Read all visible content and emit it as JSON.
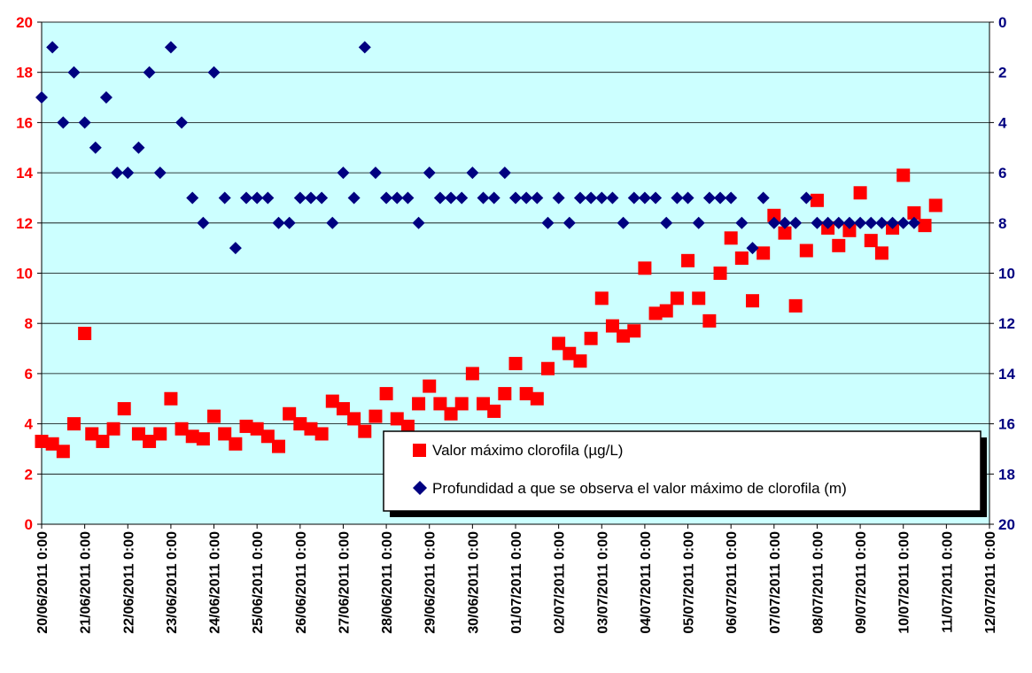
{
  "chart_data": {
    "type": "scatter",
    "background": "#ccffff",
    "grid": "horizontal",
    "legend_position": "bottom-right",
    "x_ticks": [
      "20/06/2011 0:00",
      "21/06/2011 0:00",
      "22/06/2011 0:00",
      "23/06/2011 0:00",
      "24/06/2011 0:00",
      "25/06/2011 0:00",
      "26/06/2011 0:00",
      "27/06/2011 0:00",
      "28/06/2011 0:00",
      "29/06/2011 0:00",
      "30/06/2011 0:00",
      "01/07/2011 0:00",
      "02/07/2011 0:00",
      "03/07/2011 0:00",
      "04/07/2011 0:00",
      "05/07/2011 0:00",
      "06/07/2011 0:00",
      "07/07/2011 0:00",
      "08/07/2011 0:00",
      "09/07/2011 0:00",
      "10/07/2011 0:00",
      "11/07/2011 0:00",
      "12/07/2011 0:00"
    ],
    "y_left": {
      "range": [
        0,
        20
      ],
      "ticks": [
        "0",
        "2",
        "4",
        "6",
        "8",
        "10",
        "12",
        "14",
        "16",
        "18",
        "20"
      ],
      "color": "#ff0000"
    },
    "y_right": {
      "range": [
        20,
        0
      ],
      "ticks": [
        "20",
        "18",
        "16",
        "14",
        "12",
        "10",
        "8",
        "6",
        "4",
        "2",
        "0"
      ],
      "reversed": true,
      "color": "#000080"
    },
    "series": [
      {
        "name": "Valor máximo clorofila (µg/L)",
        "axis": "left",
        "marker": "square",
        "color": "#ff0000",
        "points": [
          {
            "x": "20/06/2011 0:00",
            "y": 3.3
          },
          {
            "x": "20/06/2011 6:00",
            "y": 3.2
          },
          {
            "x": "20/06/2011 12:00",
            "y": 2.9
          },
          {
            "x": "20/06/2011 18:00",
            "y": 4.0
          },
          {
            "x": "21/06/2011 0:00",
            "y": 7.6
          },
          {
            "x": "21/06/2011 4:00",
            "y": 3.6
          },
          {
            "x": "21/06/2011 10:00",
            "y": 3.3
          },
          {
            "x": "21/06/2011 16:00",
            "y": 3.8
          },
          {
            "x": "21/06/2011 22:00",
            "y": 4.6
          },
          {
            "x": "22/06/2011 6:00",
            "y": 3.6
          },
          {
            "x": "22/06/2011 12:00",
            "y": 3.3
          },
          {
            "x": "22/06/2011 18:00",
            "y": 3.6
          },
          {
            "x": "23/06/2011 0:00",
            "y": 5.0
          },
          {
            "x": "23/06/2011 6:00",
            "y": 3.8
          },
          {
            "x": "23/06/2011 12:00",
            "y": 3.5
          },
          {
            "x": "23/06/2011 18:00",
            "y": 3.4
          },
          {
            "x": "24/06/2011 0:00",
            "y": 4.3
          },
          {
            "x": "24/06/2011 6:00",
            "y": 3.6
          },
          {
            "x": "24/06/2011 12:00",
            "y": 3.2
          },
          {
            "x": "24/06/2011 18:00",
            "y": 3.9
          },
          {
            "x": "25/06/2011 0:00",
            "y": 3.8
          },
          {
            "x": "25/06/2011 6:00",
            "y": 3.5
          },
          {
            "x": "25/06/2011 12:00",
            "y": 3.1
          },
          {
            "x": "25/06/2011 18:00",
            "y": 4.4
          },
          {
            "x": "26/06/2011 0:00",
            "y": 4.0
          },
          {
            "x": "26/06/2011 6:00",
            "y": 3.8
          },
          {
            "x": "26/06/2011 12:00",
            "y": 3.6
          },
          {
            "x": "26/06/2011 18:00",
            "y": 4.9
          },
          {
            "x": "27/06/2011 0:00",
            "y": 4.6
          },
          {
            "x": "27/06/2011 6:00",
            "y": 4.2
          },
          {
            "x": "27/06/2011 12:00",
            "y": 3.7
          },
          {
            "x": "27/06/2011 18:00",
            "y": 4.3
          },
          {
            "x": "28/06/2011 0:00",
            "y": 5.2
          },
          {
            "x": "28/06/2011 6:00",
            "y": 4.2
          },
          {
            "x": "28/06/2011 12:00",
            "y": 3.9
          },
          {
            "x": "28/06/2011 18:00",
            "y": 4.8
          },
          {
            "x": "29/06/2011 0:00",
            "y": 5.5
          },
          {
            "x": "29/06/2011 6:00",
            "y": 4.8
          },
          {
            "x": "29/06/2011 12:00",
            "y": 4.4
          },
          {
            "x": "29/06/2011 18:00",
            "y": 4.8
          },
          {
            "x": "30/06/2011 0:00",
            "y": 6.0
          },
          {
            "x": "30/06/2011 6:00",
            "y": 4.8
          },
          {
            "x": "30/06/2011 12:00",
            "y": 4.5
          },
          {
            "x": "30/06/2011 18:00",
            "y": 5.2
          },
          {
            "x": "01/07/2011 0:00",
            "y": 6.4
          },
          {
            "x": "01/07/2011 6:00",
            "y": 5.2
          },
          {
            "x": "01/07/2011 12:00",
            "y": 5.0
          },
          {
            "x": "01/07/2011 18:00",
            "y": 6.2
          },
          {
            "x": "02/07/2011 0:00",
            "y": 7.2
          },
          {
            "x": "02/07/2011 6:00",
            "y": 6.8
          },
          {
            "x": "02/07/2011 12:00",
            "y": 6.5
          },
          {
            "x": "02/07/2011 18:00",
            "y": 7.4
          },
          {
            "x": "03/07/2011 0:00",
            "y": 9.0
          },
          {
            "x": "03/07/2011 6:00",
            "y": 7.9
          },
          {
            "x": "03/07/2011 12:00",
            "y": 7.5
          },
          {
            "x": "03/07/2011 18:00",
            "y": 7.7
          },
          {
            "x": "04/07/2011 0:00",
            "y": 10.2
          },
          {
            "x": "04/07/2011 6:00",
            "y": 8.4
          },
          {
            "x": "04/07/2011 12:00",
            "y": 8.5
          },
          {
            "x": "04/07/2011 18:00",
            "y": 9.0
          },
          {
            "x": "05/07/2011 0:00",
            "y": 10.5
          },
          {
            "x": "05/07/2011 6:00",
            "y": 9.0
          },
          {
            "x": "05/07/2011 12:00",
            "y": 8.1
          },
          {
            "x": "05/07/2011 18:00",
            "y": 10.0
          },
          {
            "x": "06/07/2011 0:00",
            "y": 11.4
          },
          {
            "x": "06/07/2011 6:00",
            "y": 10.6
          },
          {
            "x": "06/07/2011 12:00",
            "y": 8.9
          },
          {
            "x": "06/07/2011 18:00",
            "y": 10.8
          },
          {
            "x": "07/07/2011 0:00",
            "y": 12.3
          },
          {
            "x": "07/07/2011 6:00",
            "y": 11.6
          },
          {
            "x": "07/07/2011 12:00",
            "y": 8.7
          },
          {
            "x": "07/07/2011 18:00",
            "y": 10.9
          },
          {
            "x": "08/07/2011 0:00",
            "y": 12.9
          },
          {
            "x": "08/07/2011 6:00",
            "y": 11.8
          },
          {
            "x": "08/07/2011 12:00",
            "y": 11.1
          },
          {
            "x": "08/07/2011 18:00",
            "y": 11.7
          },
          {
            "x": "09/07/2011 0:00",
            "y": 13.2
          },
          {
            "x": "09/07/2011 6:00",
            "y": 11.3
          },
          {
            "x": "09/07/2011 12:00",
            "y": 10.8
          },
          {
            "x": "09/07/2011 18:00",
            "y": 11.8
          },
          {
            "x": "10/07/2011 0:00",
            "y": 13.9
          },
          {
            "x": "10/07/2011 6:00",
            "y": 12.4
          },
          {
            "x": "10/07/2011 12:00",
            "y": 11.9
          },
          {
            "x": "10/07/2011 18:00",
            "y": 12.7
          }
        ]
      },
      {
        "name": "Profundidad a que se observa el valor máximo de clorofila (m)",
        "axis": "right",
        "marker": "diamond",
        "color": "#000080",
        "points": [
          {
            "x": "20/06/2011 0:00",
            "y": 3
          },
          {
            "x": "20/06/2011 6:00",
            "y": 1
          },
          {
            "x": "20/06/2011 12:00",
            "y": 4
          },
          {
            "x": "20/06/2011 18:00",
            "y": 2
          },
          {
            "x": "21/06/2011 0:00",
            "y": 4
          },
          {
            "x": "21/06/2011 6:00",
            "y": 5
          },
          {
            "x": "21/06/2011 12:00",
            "y": 3
          },
          {
            "x": "21/06/2011 18:00",
            "y": 6
          },
          {
            "x": "22/06/2011 0:00",
            "y": 6
          },
          {
            "x": "22/06/2011 6:00",
            "y": 5
          },
          {
            "x": "22/06/2011 12:00",
            "y": 2
          },
          {
            "x": "22/06/2011 18:00",
            "y": 6
          },
          {
            "x": "23/06/2011 0:00",
            "y": 1
          },
          {
            "x": "23/06/2011 6:00",
            "y": 4
          },
          {
            "x": "23/06/2011 12:00",
            "y": 7
          },
          {
            "x": "23/06/2011 18:00",
            "y": 8
          },
          {
            "x": "24/06/2011 0:00",
            "y": 2
          },
          {
            "x": "24/06/2011 6:00",
            "y": 7
          },
          {
            "x": "24/06/2011 12:00",
            "y": 9
          },
          {
            "x": "24/06/2011 18:00",
            "y": 7
          },
          {
            "x": "25/06/2011 0:00",
            "y": 7
          },
          {
            "x": "25/06/2011 6:00",
            "y": 7
          },
          {
            "x": "25/06/2011 12:00",
            "y": 8
          },
          {
            "x": "25/06/2011 18:00",
            "y": 8
          },
          {
            "x": "26/06/2011 0:00",
            "y": 7
          },
          {
            "x": "26/06/2011 6:00",
            "y": 7
          },
          {
            "x": "26/06/2011 12:00",
            "y": 7
          },
          {
            "x": "26/06/2011 18:00",
            "y": 8
          },
          {
            "x": "27/06/2011 0:00",
            "y": 6
          },
          {
            "x": "27/06/2011 6:00",
            "y": 7
          },
          {
            "x": "27/06/2011 12:00",
            "y": 1
          },
          {
            "x": "27/06/2011 18:00",
            "y": 6
          },
          {
            "x": "28/06/2011 0:00",
            "y": 7
          },
          {
            "x": "28/06/2011 6:00",
            "y": 7
          },
          {
            "x": "28/06/2011 12:00",
            "y": 7
          },
          {
            "x": "28/06/2011 18:00",
            "y": 8
          },
          {
            "x": "29/06/2011 0:00",
            "y": 6
          },
          {
            "x": "29/06/2011 6:00",
            "y": 7
          },
          {
            "x": "29/06/2011 12:00",
            "y": 7
          },
          {
            "x": "29/06/2011 18:00",
            "y": 7
          },
          {
            "x": "30/06/2011 0:00",
            "y": 6
          },
          {
            "x": "30/06/2011 6:00",
            "y": 7
          },
          {
            "x": "30/06/2011 12:00",
            "y": 7
          },
          {
            "x": "30/06/2011 18:00",
            "y": 6
          },
          {
            "x": "01/07/2011 0:00",
            "y": 7
          },
          {
            "x": "01/07/2011 6:00",
            "y": 7
          },
          {
            "x": "01/07/2011 12:00",
            "y": 7
          },
          {
            "x": "01/07/2011 18:00",
            "y": 8
          },
          {
            "x": "02/07/2011 0:00",
            "y": 7
          },
          {
            "x": "02/07/2011 6:00",
            "y": 8
          },
          {
            "x": "02/07/2011 12:00",
            "y": 7
          },
          {
            "x": "02/07/2011 18:00",
            "y": 7
          },
          {
            "x": "03/07/2011 0:00",
            "y": 7
          },
          {
            "x": "03/07/2011 6:00",
            "y": 7
          },
          {
            "x": "03/07/2011 12:00",
            "y": 8
          },
          {
            "x": "03/07/2011 18:00",
            "y": 7
          },
          {
            "x": "04/07/2011 0:00",
            "y": 7
          },
          {
            "x": "04/07/2011 6:00",
            "y": 7
          },
          {
            "x": "04/07/2011 12:00",
            "y": 8
          },
          {
            "x": "04/07/2011 18:00",
            "y": 7
          },
          {
            "x": "05/07/2011 0:00",
            "y": 7
          },
          {
            "x": "05/07/2011 6:00",
            "y": 8
          },
          {
            "x": "05/07/2011 12:00",
            "y": 7
          },
          {
            "x": "05/07/2011 18:00",
            "y": 7
          },
          {
            "x": "06/07/2011 0:00",
            "y": 7
          },
          {
            "x": "06/07/2011 6:00",
            "y": 8
          },
          {
            "x": "06/07/2011 12:00",
            "y": 9
          },
          {
            "x": "06/07/2011 18:00",
            "y": 7
          },
          {
            "x": "07/07/2011 0:00",
            "y": 8
          },
          {
            "x": "07/07/2011 6:00",
            "y": 8
          },
          {
            "x": "07/07/2011 12:00",
            "y": 8
          },
          {
            "x": "07/07/2011 18:00",
            "y": 7
          },
          {
            "x": "08/07/2011 0:00",
            "y": 8
          },
          {
            "x": "08/07/2011 6:00",
            "y": 8
          },
          {
            "x": "08/07/2011 12:00",
            "y": 8
          },
          {
            "x": "08/07/2011 18:00",
            "y": 8
          },
          {
            "x": "09/07/2011 0:00",
            "y": 8
          },
          {
            "x": "09/07/2011 6:00",
            "y": 8
          },
          {
            "x": "09/07/2011 12:00",
            "y": 8
          },
          {
            "x": "09/07/2011 18:00",
            "y": 8
          },
          {
            "x": "10/07/2011 0:00",
            "y": 8
          },
          {
            "x": "10/07/2011 6:00",
            "y": 8
          }
        ]
      }
    ]
  }
}
